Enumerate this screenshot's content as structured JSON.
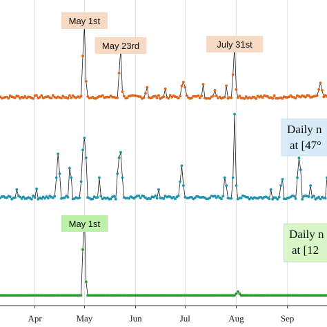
{
  "chart_data": [
    {
      "type": "line",
      "panel": "top",
      "color": "#e0661a",
      "x_range": [
        "2020-03-10",
        "2020-09-30"
      ],
      "series": [
        {
          "baseline": 0.5,
          "peaks": [
            {
              "date": "2020-04-30",
              "value": 6.0
            },
            {
              "date": "2020-05-01",
              "value": 10.0
            },
            {
              "date": "2020-05-02",
              "value": 2.6
            },
            {
              "date": "2020-05-22",
              "value": 3.7
            },
            {
              "date": "2020-05-23",
              "value": 7.0
            },
            {
              "date": "2020-05-24",
              "value": 1.2
            },
            {
              "date": "2020-06-07",
              "value": 1.0
            },
            {
              "date": "2020-06-08",
              "value": 1.8
            },
            {
              "date": "2020-06-19",
              "value": 1.6
            },
            {
              "date": "2020-06-29",
              "value": 2.0
            },
            {
              "date": "2020-06-30",
              "value": 2.5
            },
            {
              "date": "2020-07-01",
              "value": 1.8
            },
            {
              "date": "2020-07-12",
              "value": 2.2
            },
            {
              "date": "2020-07-19",
              "value": 1.4
            },
            {
              "date": "2020-07-26",
              "value": 2.0
            },
            {
              "date": "2020-07-30",
              "value": 3.5
            },
            {
              "date": "2020-07-31",
              "value": 7.5
            },
            {
              "date": "2020-08-01",
              "value": 1.5
            },
            {
              "date": "2020-09-20",
              "value": 1.5
            },
            {
              "date": "2020-09-21",
              "value": 2.4
            },
            {
              "date": "2020-09-22",
              "value": 1.4
            }
          ]
        }
      ],
      "callouts": [
        {
          "text": "May 1st",
          "date": "2020-05-01"
        },
        {
          "text": "May 23rd",
          "date": "2020-05-23"
        },
        {
          "text": "July 31st",
          "date": "2020-07-31"
        }
      ]
    },
    {
      "type": "line",
      "panel": "middle",
      "color": "#1e94ad",
      "x_range": [
        "2020-03-10",
        "2020-09-30"
      ],
      "series": [
        {
          "baseline": 0.5,
          "peaks": [
            {
              "date": "2020-03-21",
              "value": 1.5
            },
            {
              "date": "2020-04-02",
              "value": 1.6
            },
            {
              "date": "2020-04-14",
              "value": 3.0
            },
            {
              "date": "2020-04-15",
              "value": 6.0
            },
            {
              "date": "2020-04-16",
              "value": 3.5
            },
            {
              "date": "2020-04-22",
              "value": 4.2
            },
            {
              "date": "2020-04-23",
              "value": 3.0
            },
            {
              "date": "2020-04-29",
              "value": 2.5
            },
            {
              "date": "2020-04-30",
              "value": 6.5
            },
            {
              "date": "2020-05-01",
              "value": 8.0
            },
            {
              "date": "2020-05-02",
              "value": 5.5
            },
            {
              "date": "2020-05-10",
              "value": 3.0
            },
            {
              "date": "2020-05-21",
              "value": 3.5
            },
            {
              "date": "2020-05-22",
              "value": 5.5
            },
            {
              "date": "2020-05-23",
              "value": 6.2
            },
            {
              "date": "2020-05-24",
              "value": 3.0
            },
            {
              "date": "2020-06-15",
              "value": 1.5
            },
            {
              "date": "2020-06-28",
              "value": 2.5
            },
            {
              "date": "2020-06-29",
              "value": 4.5
            },
            {
              "date": "2020-06-30",
              "value": 2.0
            },
            {
              "date": "2020-07-25",
              "value": 3.0
            },
            {
              "date": "2020-07-26",
              "value": 2.0
            },
            {
              "date": "2020-07-30",
              "value": 3.0
            },
            {
              "date": "2020-07-31",
              "value": 11.0
            },
            {
              "date": "2020-08-01",
              "value": 2.0
            },
            {
              "date": "2020-08-22",
              "value": 1.5
            },
            {
              "date": "2020-08-28",
              "value": 2.0
            },
            {
              "date": "2020-08-29",
              "value": 2.8
            },
            {
              "date": "2020-09-07",
              "value": 3.0
            },
            {
              "date": "2020-09-08",
              "value": 5.5
            },
            {
              "date": "2020-09-09",
              "value": 4.0
            },
            {
              "date": "2020-09-15",
              "value": 2.0
            },
            {
              "date": "2020-09-25",
              "value": 3.0
            },
            {
              "date": "2020-09-26",
              "value": 5.0
            }
          ]
        }
      ],
      "info_box": {
        "line1": "Daily n",
        "line2": "at [47°"
      }
    },
    {
      "type": "line",
      "panel": "bottom",
      "color": "#2a9a35",
      "x_range": [
        "2020-03-10",
        "2020-09-30"
      ],
      "series": [
        {
          "baseline": 0.5,
          "peaks": [
            {
              "date": "2020-04-30",
              "value": 9.0
            },
            {
              "date": "2020-05-01",
              "value": 15.0
            },
            {
              "date": "2020-05-02",
              "value": 3.0
            },
            {
              "date": "2020-08-01",
              "value": 0.8
            },
            {
              "date": "2020-08-02",
              "value": 1.2
            },
            {
              "date": "2020-08-03",
              "value": 0.8
            }
          ]
        }
      ],
      "callouts": [
        {
          "text": "May 1st",
          "date": "2020-05-01"
        }
      ],
      "info_box": {
        "line1": "Daily n",
        "line2": "at [12"
      }
    }
  ],
  "x_axis": {
    "ticks": [
      {
        "label": "Apr",
        "date": "2020-04-01"
      },
      {
        "label": "May",
        "date": "2020-05-01"
      },
      {
        "label": "Jun",
        "date": "2020-06-01"
      },
      {
        "label": "Jul",
        "date": "2020-07-01"
      },
      {
        "label": "Aug",
        "date": "2020-08-01"
      },
      {
        "label": "Sep",
        "date": "2020-09-01"
      }
    ]
  },
  "colors": {
    "orange_callout_fill": "#f7d9c4",
    "green_callout_fill": "#bdf0a8",
    "blue_box_fill": "#d7ebf8",
    "green_box_fill": "#d8f6c8",
    "grid": "#e2e2e2"
  }
}
